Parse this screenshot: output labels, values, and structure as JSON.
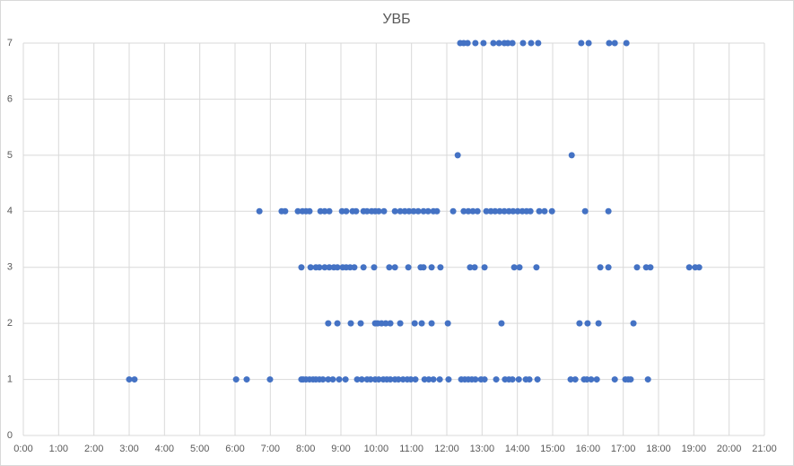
{
  "chart_data": {
    "type": "scatter",
    "title": "УВБ",
    "xlim": [
      0,
      21
    ],
    "xticks": [
      {
        "value": 0,
        "label": "0:00"
      },
      {
        "value": 1,
        "label": "1:00"
      },
      {
        "value": 2,
        "label": "2:00"
      },
      {
        "value": 3,
        "label": "3:00"
      },
      {
        "value": 4,
        "label": "4:00"
      },
      {
        "value": 5,
        "label": "5:00"
      },
      {
        "value": 6,
        "label": "6:00"
      },
      {
        "value": 7,
        "label": "7:00"
      },
      {
        "value": 8,
        "label": "8:00"
      },
      {
        "value": 9,
        "label": "9:00"
      },
      {
        "value": 10,
        "label": "10:00"
      },
      {
        "value": 11,
        "label": "11:00"
      },
      {
        "value": 12,
        "label": "12:00"
      },
      {
        "value": 13,
        "label": "13:00"
      },
      {
        "value": 14,
        "label": "14:00"
      },
      {
        "value": 15,
        "label": "15:00"
      },
      {
        "value": 16,
        "label": "16:00"
      },
      {
        "value": 17,
        "label": "17:00"
      },
      {
        "value": 18,
        "label": "18:00"
      },
      {
        "value": 19,
        "label": "19:00"
      },
      {
        "value": 20,
        "label": "20:00"
      },
      {
        "value": 21,
        "label": "21:00"
      }
    ],
    "ylim": [
      0,
      7
    ],
    "yticks": [
      0,
      1,
      2,
      3,
      4,
      5,
      6,
      7
    ],
    "grid": true,
    "color": "#4472c4",
    "x": [
      3.0,
      3.15,
      6.03,
      6.33,
      6.99,
      7.88,
      7.93,
      8.01,
      8.11,
      8.21,
      8.29,
      8.39,
      8.49,
      8.64,
      8.77,
      8.95,
      9.13,
      9.46,
      9.59,
      9.74,
      9.84,
      9.97,
      10.07,
      10.2,
      10.3,
      10.4,
      10.53,
      10.63,
      10.76,
      10.88,
      10.98,
      11.11,
      11.37,
      11.49,
      11.62,
      11.8,
      12.05,
      12.41,
      12.51,
      12.61,
      12.71,
      12.81,
      12.97,
      13.07,
      13.4,
      13.65,
      13.76,
      13.86,
      14.04,
      14.24,
      14.34,
      14.57,
      15.51,
      15.64,
      15.89,
      15.97,
      16.09,
      16.25,
      16.76,
      17.06,
      17.14,
      17.21,
      17.7,
      8.64,
      8.9,
      9.28,
      9.56,
      9.97,
      10.04,
      10.15,
      10.27,
      10.4,
      10.68,
      11.09,
      11.29,
      11.57,
      12.03,
      13.55,
      15.76,
      15.99,
      16.3,
      17.29,
      7.88,
      8.14,
      8.29,
      8.39,
      8.54,
      8.67,
      8.8,
      8.9,
      9.05,
      9.15,
      9.26,
      9.38,
      9.64,
      9.94,
      10.37,
      10.53,
      10.91,
      11.26,
      11.34,
      11.57,
      11.82,
      12.66,
      12.79,
      13.07,
      13.91,
      14.06,
      14.54,
      16.35,
      16.58,
      17.39,
      17.65,
      17.77,
      18.87,
      19.04,
      19.15,
      6.69,
      7.32,
      7.42,
      7.78,
      7.91,
      8.01,
      8.11,
      8.42,
      8.54,
      8.67,
      9.03,
      9.15,
      9.33,
      9.43,
      9.64,
      9.74,
      9.87,
      9.97,
      10.07,
      10.22,
      10.53,
      10.68,
      10.81,
      10.93,
      11.06,
      11.19,
      11.34,
      11.47,
      11.62,
      11.72,
      12.18,
      12.48,
      12.61,
      12.74,
      12.87,
      13.12,
      13.25,
      13.37,
      13.5,
      13.63,
      13.76,
      13.88,
      14.01,
      14.14,
      14.26,
      14.37,
      14.62,
      14.77,
      14.98,
      15.92,
      16.58,
      12.31,
      15.54,
      12.38,
      12.48,
      12.59,
      12.81,
      13.04,
      13.32,
      13.48,
      13.63,
      13.73,
      13.86,
      14.16,
      14.39,
      14.59,
      15.81,
      16.02,
      16.6,
      16.76,
      17.09
    ],
    "values": [
      1,
      1,
      1,
      1,
      1,
      1,
      1,
      1,
      1,
      1,
      1,
      1,
      1,
      1,
      1,
      1,
      1,
      1,
      1,
      1,
      1,
      1,
      1,
      1,
      1,
      1,
      1,
      1,
      1,
      1,
      1,
      1,
      1,
      1,
      1,
      1,
      1,
      1,
      1,
      1,
      1,
      1,
      1,
      1,
      1,
      1,
      1,
      1,
      1,
      1,
      1,
      1,
      1,
      1,
      1,
      1,
      1,
      1,
      1,
      1,
      1,
      1,
      1,
      2,
      2,
      2,
      2,
      2,
      2,
      2,
      2,
      2,
      2,
      2,
      2,
      2,
      2,
      2,
      2,
      2,
      2,
      2,
      3,
      3,
      3,
      3,
      3,
      3,
      3,
      3,
      3,
      3,
      3,
      3,
      3,
      3,
      3,
      3,
      3,
      3,
      3,
      3,
      3,
      3,
      3,
      3,
      3,
      3,
      3,
      3,
      3,
      3,
      3,
      3,
      3,
      3,
      3,
      4,
      4,
      4,
      4,
      4,
      4,
      4,
      4,
      4,
      4,
      4,
      4,
      4,
      4,
      4,
      4,
      4,
      4,
      4,
      4,
      4,
      4,
      4,
      4,
      4,
      4,
      4,
      4,
      4,
      4,
      4,
      4,
      4,
      4,
      4,
      4,
      4,
      4,
      4,
      4,
      4,
      4,
      4,
      4,
      4,
      4,
      4,
      4,
      4,
      4,
      4,
      5,
      5,
      7,
      7,
      7,
      7,
      7,
      7,
      7,
      7,
      7,
      7,
      7,
      7,
      7,
      7,
      7,
      7,
      7,
      7
    ]
  }
}
